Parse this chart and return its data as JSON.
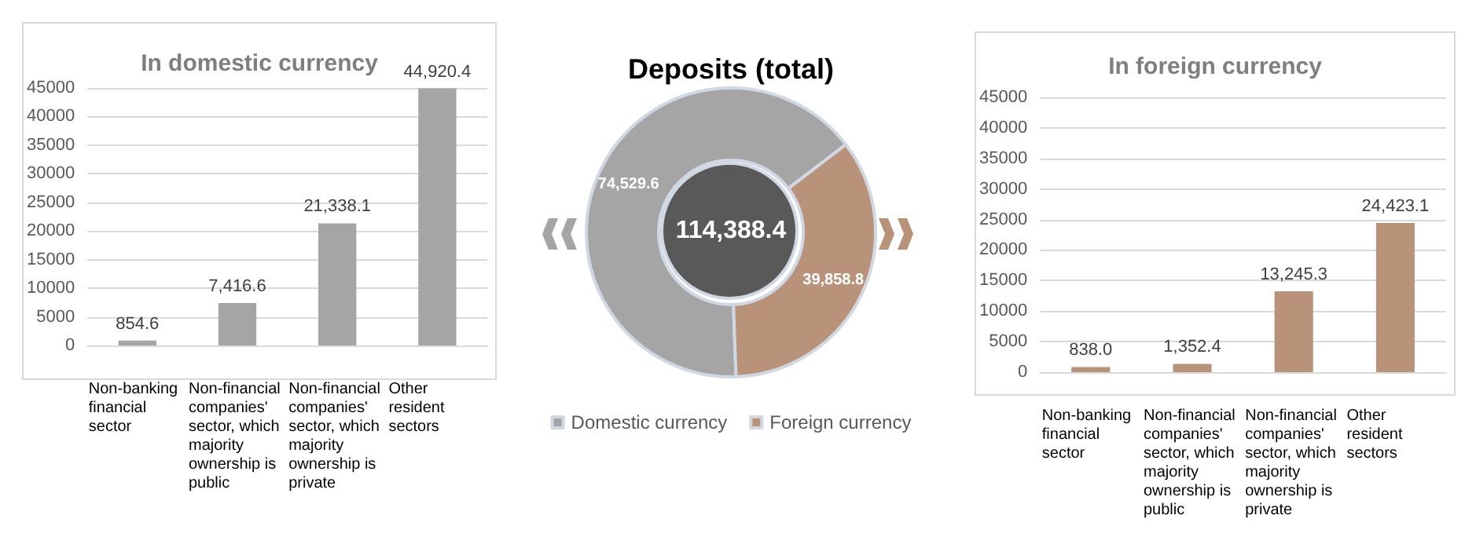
{
  "chart_data": [
    {
      "type": "bar",
      "title": "In domestic currency",
      "categories": [
        "Non-banking financial sector",
        "Non-financial companies' sector, which majority ownership is public",
        "Non-financial companies' sector, which majority ownership is private",
        "Other resident sectors"
      ],
      "values": [
        854.6,
        7416.6,
        21338.1,
        44920.4
      ],
      "value_labels": [
        "854.6",
        "7,416.6",
        "21,338.1",
        "44,920.4"
      ],
      "color": "#a5a5a5",
      "ylim": [
        0,
        45000
      ],
      "yticks": [
        0,
        5000,
        10000,
        15000,
        20000,
        25000,
        30000,
        35000,
        40000,
        45000
      ],
      "grid": "y",
      "legend": false
    },
    {
      "type": "donut",
      "title": "Deposits (total)",
      "categories": [
        "Domestic currency",
        "Foreign currency"
      ],
      "values": [
        74529.6,
        39858.8
      ],
      "value_labels": [
        "74,529.6",
        "39,858.8"
      ],
      "colors": [
        "#a5a5a5",
        "#b8937a"
      ],
      "annotations": [
        "114,388.4"
      ],
      "legend": "bottom"
    },
    {
      "type": "bar",
      "title": "In foreign currency",
      "categories": [
        "Non-banking financial sector",
        "Non-financial companies' sector, which majority ownership is public",
        "Non-financial companies' sector, which majority ownership is private",
        "Other resident sectors"
      ],
      "values": [
        838.0,
        1352.4,
        13245.3,
        24423.1
      ],
      "value_labels": [
        "838.0",
        "1,352.4",
        "13,245.3",
        "24,423.1"
      ],
      "color": "#b8937a",
      "ylim": [
        0,
        45000
      ],
      "yticks": [
        0,
        5000,
        10000,
        15000,
        20000,
        25000,
        30000,
        35000,
        40000,
        45000
      ],
      "grid": "y",
      "legend": false
    }
  ]
}
